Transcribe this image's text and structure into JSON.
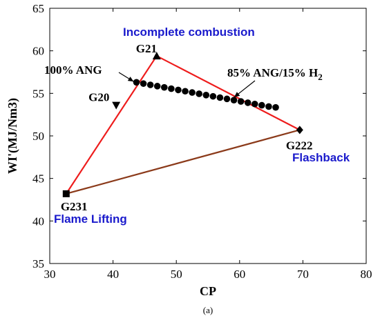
{
  "chart_data": {
    "type": "scatter",
    "title": "",
    "xlabel": "CP",
    "ylabel": "WI'(MJ/Nm3)",
    "caption": "(a)",
    "xlim": [
      30,
      80
    ],
    "ylim": [
      35,
      65
    ],
    "x_ticks": [
      30,
      40,
      50,
      60,
      70,
      80
    ],
    "y_ticks": [
      35,
      40,
      45,
      50,
      55,
      60,
      65
    ],
    "grid": false,
    "legend": "none",
    "named_gases": [
      {
        "label": "G21",
        "x": 46.9,
        "y": 59.4,
        "marker": "triangle-up"
      },
      {
        "label": "G20",
        "x": 40.5,
        "y": 53.6,
        "marker": "triangle-down"
      },
      {
        "label": "G222",
        "x": 69.5,
        "y": 50.7,
        "marker": "diamond"
      },
      {
        "label": "G231",
        "x": 32.6,
        "y": 43.2,
        "marker": "square"
      }
    ],
    "series": [
      {
        "x": [
          43.7,
          44.8,
          45.9,
          47.0,
          48.1,
          49.2,
          50.3,
          51.4,
          52.5,
          53.6,
          54.7,
          55.8,
          56.9,
          58.0,
          59.1,
          60.2,
          61.3,
          62.4,
          63.5,
          64.6,
          65.7
        ],
        "y": [
          56.3,
          56.15,
          56.0,
          55.85,
          55.7,
          55.55,
          55.4,
          55.25,
          55.1,
          54.95,
          54.8,
          54.65,
          54.5,
          54.35,
          54.2,
          54.05,
          53.9,
          53.75,
          53.6,
          53.45,
          53.35
        ]
      }
    ],
    "triangle_edges": [
      {
        "from": "G231",
        "to": "G21",
        "color": "#ee1c1c"
      },
      {
        "from": "G21",
        "to": "G222",
        "color": "#ee1c1c"
      },
      {
        "from": "G222",
        "to": "G231",
        "color": "#8b3a1a"
      }
    ],
    "annotations": {
      "pure_ang": {
        "text": "100% ANG",
        "arrow_to": [
          43.7,
          56.3
        ]
      },
      "hydrogen_mix": {
        "text": "85% ANG/15% H",
        "subscript": "2",
        "arrow_to": [
          58.8,
          54.3
        ]
      }
    },
    "regions": {
      "incomplete": "Incomplete combustion",
      "flashback": "Flashback",
      "lifting": "Flame Lifting"
    },
    "colors": {
      "triangle": "#ee1c1c",
      "base_edge": "#8b3a1a",
      "region_text": "#1a1acc",
      "markers": "#000000"
    }
  }
}
